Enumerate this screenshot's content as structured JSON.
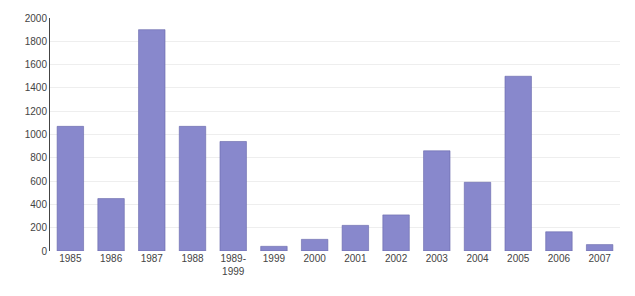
{
  "chart_data": {
    "type": "bar",
    "categories": [
      "1985",
      "1986",
      "1987",
      "1988",
      "1989-\n1999",
      "1999",
      "2000",
      "2001",
      "2002",
      "2003",
      "2004",
      "2005",
      "2006",
      "2007"
    ],
    "values": [
      1070,
      450,
      1900,
      1070,
      940,
      40,
      100,
      220,
      310,
      860,
      590,
      1500,
      165,
      55
    ],
    "color": "#8888cc",
    "ylim": [
      0,
      2000
    ],
    "yticks": [
      0,
      200,
      400,
      600,
      800,
      1000,
      1200,
      1400,
      1600,
      1800,
      2000
    ],
    "grid": true
  }
}
